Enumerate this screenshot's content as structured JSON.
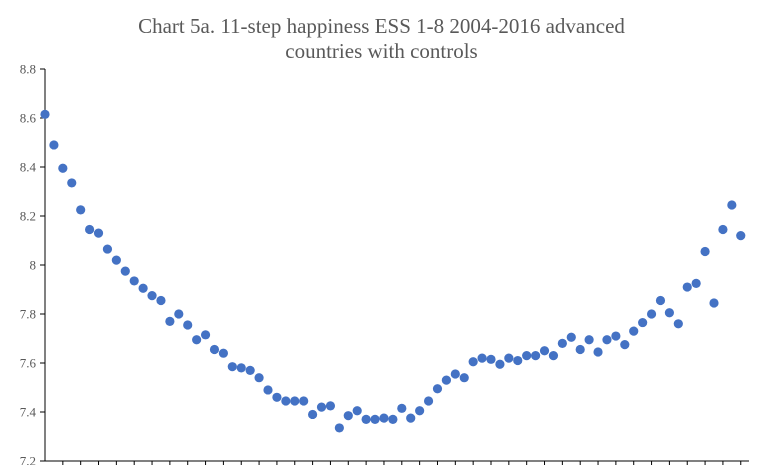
{
  "chart_data": {
    "type": "scatter",
    "title": "Chart 5a.  11-step happiness ESS 1-8 2004-2016 advanced countries with controls",
    "title_lines": [
      "Chart 5a.  11-step happiness ESS 1-8 2004-2016 advanced",
      "countries with controls"
    ],
    "xlabel": "",
    "ylabel": "",
    "ylim": [
      7.2,
      8.8
    ],
    "yticks": [
      7.2,
      7.4,
      7.6,
      7.8,
      8,
      8.2,
      8.4,
      8.6,
      8.8
    ],
    "ytick_labels": [
      "7.2",
      "7.4",
      "7.6",
      "7.8",
      "8",
      "8.2",
      "8.4",
      "8.6",
      "8.8"
    ],
    "grid": false,
    "legend": "none",
    "marker_color": "#4472C4",
    "x": [
      1,
      2,
      3,
      4,
      5,
      6,
      7,
      8,
      9,
      10,
      11,
      12,
      13,
      14,
      15,
      16,
      17,
      18,
      19,
      20,
      21,
      22,
      23,
      24,
      25,
      26,
      27,
      28,
      29,
      30,
      31,
      32,
      33,
      34,
      35,
      36,
      37,
      38,
      39,
      40,
      41,
      42,
      43,
      44,
      45,
      46,
      47,
      48,
      49,
      50,
      51,
      52,
      53,
      54,
      55,
      56,
      57,
      58,
      59,
      60,
      61,
      62,
      63,
      64,
      65,
      66,
      67,
      68,
      69,
      70,
      71,
      72,
      73,
      74,
      75,
      76,
      77,
      78,
      79
    ],
    "y": [
      8.615,
      8.49,
      8.395,
      8.335,
      8.225,
      8.145,
      8.13,
      8.065,
      8.02,
      7.975,
      7.935,
      7.905,
      7.875,
      7.855,
      7.77,
      7.8,
      7.755,
      7.695,
      7.715,
      7.655,
      7.64,
      7.585,
      7.58,
      7.57,
      7.54,
      7.49,
      7.46,
      7.445,
      7.445,
      7.445,
      7.39,
      7.42,
      7.425,
      7.335,
      7.385,
      7.405,
      7.37,
      7.37,
      7.375,
      7.37,
      7.415,
      7.375,
      7.405,
      7.445,
      7.495,
      7.53,
      7.555,
      7.54,
      7.605,
      7.62,
      7.615,
      7.595,
      7.62,
      7.61,
      7.63,
      7.63,
      7.65,
      7.63,
      7.68,
      7.705,
      7.655,
      7.695,
      7.645,
      7.695,
      7.71,
      7.675,
      7.73,
      7.765,
      7.8,
      7.855,
      7.805,
      7.76,
      7.91,
      7.925,
      8.055,
      7.845,
      8.145,
      8.245,
      8.12
    ]
  }
}
